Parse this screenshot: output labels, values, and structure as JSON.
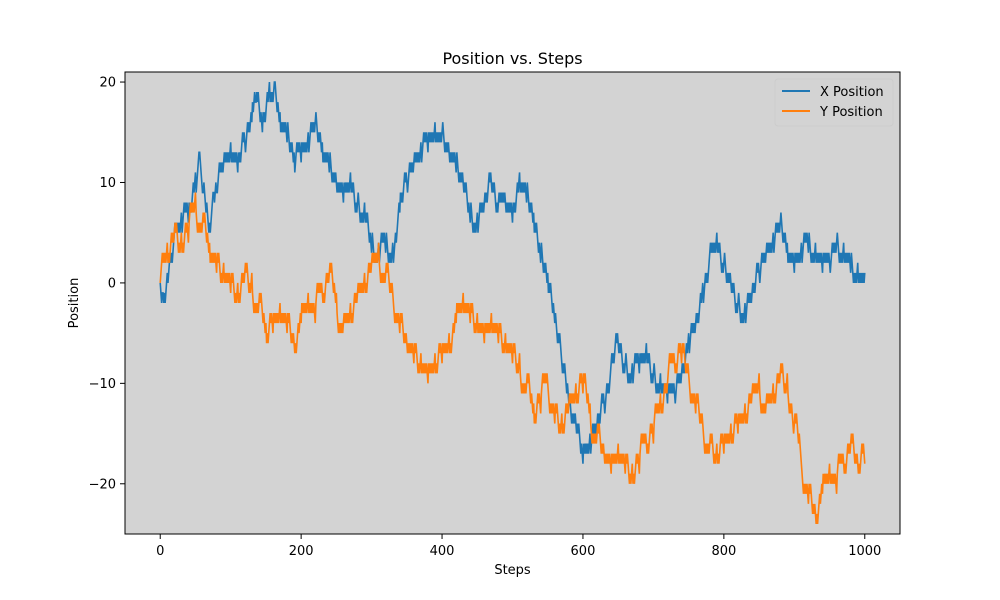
{
  "chart_data": {
    "type": "line",
    "title": "Position vs. Steps",
    "xlabel": "Steps",
    "ylabel": "Position",
    "xlim": [
      -50,
      1050
    ],
    "ylim": [
      -25,
      21
    ],
    "xticks": [
      0,
      200,
      400,
      600,
      800,
      1000
    ],
    "yticks": [
      -20,
      -10,
      0,
      10,
      20
    ],
    "grid": false,
    "legend_position": "top-right",
    "background_color": "#d3d3d3",
    "series": [
      {
        "name": "X Position",
        "color": "#1f77b4",
        "points": [
          [
            0,
            0
          ],
          [
            3,
            -2
          ],
          [
            10,
            1
          ],
          [
            20,
            5
          ],
          [
            30,
            6
          ],
          [
            40,
            7
          ],
          [
            50,
            10
          ],
          [
            55,
            12
          ],
          [
            60,
            10
          ],
          [
            65,
            7
          ],
          [
            70,
            6
          ],
          [
            75,
            8
          ],
          [
            80,
            10
          ],
          [
            90,
            12
          ],
          [
            100,
            13
          ],
          [
            110,
            12
          ],
          [
            120,
            14
          ],
          [
            130,
            17
          ],
          [
            135,
            19
          ],
          [
            145,
            16
          ],
          [
            155,
            19
          ],
          [
            162,
            19
          ],
          [
            170,
            16
          ],
          [
            180,
            15
          ],
          [
            190,
            12
          ],
          [
            200,
            13
          ],
          [
            210,
            14
          ],
          [
            220,
            16
          ],
          [
            230,
            13
          ],
          [
            240,
            12
          ],
          [
            250,
            10
          ],
          [
            260,
            9
          ],
          [
            270,
            10
          ],
          [
            280,
            8
          ],
          [
            290,
            7
          ],
          [
            300,
            4
          ],
          [
            310,
            3
          ],
          [
            320,
            4
          ],
          [
            330,
            3
          ],
          [
            340,
            8
          ],
          [
            350,
            10
          ],
          [
            360,
            12
          ],
          [
            370,
            13
          ],
          [
            380,
            14
          ],
          [
            390,
            15
          ],
          [
            400,
            15
          ],
          [
            410,
            13
          ],
          [
            420,
            12
          ],
          [
            430,
            10
          ],
          [
            440,
            7
          ],
          [
            450,
            6
          ],
          [
            460,
            8
          ],
          [
            470,
            10
          ],
          [
            480,
            8
          ],
          [
            490,
            8
          ],
          [
            500,
            7
          ],
          [
            510,
            10
          ],
          [
            520,
            9
          ],
          [
            530,
            6
          ],
          [
            540,
            3
          ],
          [
            550,
            0
          ],
          [
            560,
            -4
          ],
          [
            570,
            -8
          ],
          [
            580,
            -12
          ],
          [
            590,
            -14
          ],
          [
            600,
            -17
          ],
          [
            610,
            -16
          ],
          [
            620,
            -14
          ],
          [
            630,
            -12
          ],
          [
            640,
            -8
          ],
          [
            650,
            -6
          ],
          [
            660,
            -8
          ],
          [
            670,
            -9
          ],
          [
            680,
            -8
          ],
          [
            690,
            -7
          ],
          [
            700,
            -9
          ],
          [
            710,
            -10
          ],
          [
            720,
            -11
          ],
          [
            730,
            -11
          ],
          [
            740,
            -9
          ],
          [
            750,
            -6
          ],
          [
            760,
            -4
          ],
          [
            770,
            -1
          ],
          [
            780,
            3
          ],
          [
            790,
            4
          ],
          [
            800,
            2
          ],
          [
            810,
            0
          ],
          [
            820,
            -2
          ],
          [
            830,
            -3
          ],
          [
            840,
            -1
          ],
          [
            850,
            1
          ],
          [
            860,
            3
          ],
          [
            870,
            4
          ],
          [
            880,
            6
          ],
          [
            890,
            3
          ],
          [
            900,
            2
          ],
          [
            910,
            3
          ],
          [
            920,
            4
          ],
          [
            930,
            3
          ],
          [
            940,
            2
          ],
          [
            950,
            2
          ],
          [
            960,
            4
          ],
          [
            970,
            3
          ],
          [
            980,
            2
          ],
          [
            990,
            1
          ],
          [
            1000,
            1
          ]
        ]
      },
      {
        "name": "Y Position",
        "color": "#ff7f0e",
        "points": [
          [
            0,
            0
          ],
          [
            10,
            3
          ],
          [
            20,
            5
          ],
          [
            30,
            4
          ],
          [
            40,
            5
          ],
          [
            50,
            8
          ],
          [
            60,
            6
          ],
          [
            70,
            3
          ],
          [
            80,
            2
          ],
          [
            90,
            1
          ],
          [
            100,
            0
          ],
          [
            110,
            -1
          ],
          [
            120,
            1
          ],
          [
            130,
            0
          ],
          [
            140,
            -2
          ],
          [
            150,
            -5
          ],
          [
            160,
            -4
          ],
          [
            170,
            -3
          ],
          [
            180,
            -4
          ],
          [
            190,
            -6
          ],
          [
            200,
            -3
          ],
          [
            210,
            -2
          ],
          [
            220,
            -3
          ],
          [
            230,
            -1
          ],
          [
            240,
            1
          ],
          [
            250,
            -2
          ],
          [
            260,
            -4
          ],
          [
            270,
            -3
          ],
          [
            280,
            -1
          ],
          [
            290,
            0
          ],
          [
            300,
            2
          ],
          [
            310,
            3
          ],
          [
            320,
            1
          ],
          [
            330,
            -1
          ],
          [
            340,
            -4
          ],
          [
            350,
            -6
          ],
          [
            360,
            -7
          ],
          [
            370,
            -8
          ],
          [
            380,
            -9
          ],
          [
            390,
            -8
          ],
          [
            400,
            -7
          ],
          [
            410,
            -6
          ],
          [
            420,
            -3
          ],
          [
            430,
            -2
          ],
          [
            440,
            -3
          ],
          [
            450,
            -4
          ],
          [
            460,
            -5
          ],
          [
            470,
            -4
          ],
          [
            480,
            -5
          ],
          [
            490,
            -6
          ],
          [
            500,
            -7
          ],
          [
            510,
            -8
          ],
          [
            520,
            -10
          ],
          [
            530,
            -13
          ],
          [
            540,
            -12
          ],
          [
            550,
            -10
          ],
          [
            560,
            -13
          ],
          [
            570,
            -14
          ],
          [
            580,
            -12
          ],
          [
            590,
            -11
          ],
          [
            600,
            -10
          ],
          [
            610,
            -13
          ],
          [
            620,
            -15
          ],
          [
            630,
            -17
          ],
          [
            640,
            -18
          ],
          [
            650,
            -17
          ],
          [
            660,
            -18
          ],
          [
            670,
            -19
          ],
          [
            680,
            -18
          ],
          [
            690,
            -16
          ],
          [
            700,
            -15
          ],
          [
            710,
            -12
          ],
          [
            720,
            -10
          ],
          [
            730,
            -8
          ],
          [
            740,
            -7
          ],
          [
            750,
            -9
          ],
          [
            760,
            -12
          ],
          [
            770,
            -14
          ],
          [
            780,
            -16
          ],
          [
            790,
            -17
          ],
          [
            800,
            -16
          ],
          [
            810,
            -15
          ],
          [
            820,
            -14
          ],
          [
            830,
            -13
          ],
          [
            840,
            -11
          ],
          [
            850,
            -10
          ],
          [
            860,
            -12
          ],
          [
            870,
            -11
          ],
          [
            880,
            -9
          ],
          [
            890,
            -10
          ],
          [
            900,
            -14
          ],
          [
            910,
            -18
          ],
          [
            920,
            -21
          ],
          [
            930,
            -23
          ],
          [
            940,
            -20
          ],
          [
            950,
            -19
          ],
          [
            960,
            -20
          ],
          [
            970,
            -18
          ],
          [
            980,
            -16
          ],
          [
            990,
            -18
          ],
          [
            1000,
            -17
          ]
        ]
      }
    ]
  }
}
